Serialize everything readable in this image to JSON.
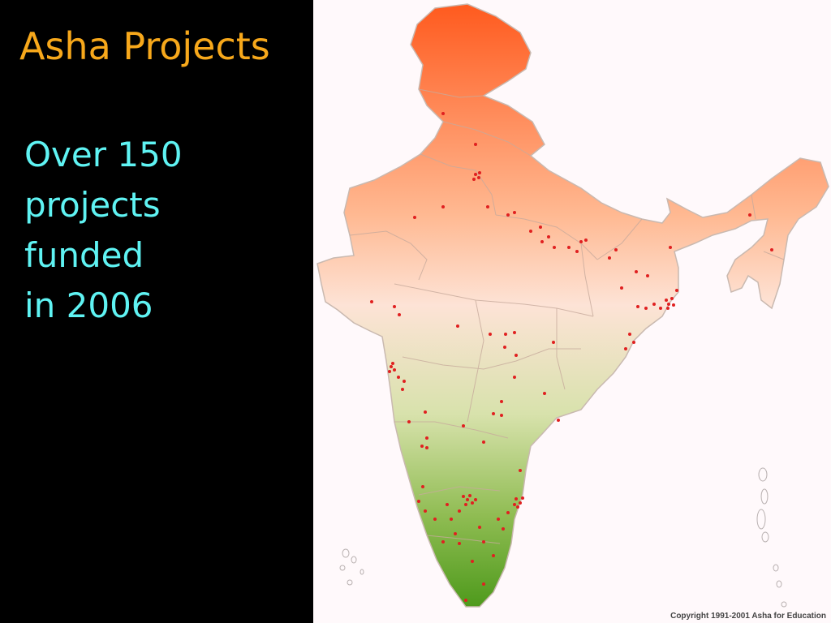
{
  "slide": {
    "title": "Asha Projects",
    "body_lines": [
      "Over 150",
      "projects",
      "funded",
      "in 2006"
    ]
  },
  "map": {
    "subject": "map-of-india",
    "marker_color": "#e02020",
    "gradient": [
      "#ff5a1e",
      "#ffd9c2",
      "#fbe9e2",
      "#c9dca0",
      "#4e9a1c"
    ],
    "copyright": "Copyright 1991-2001 Asha for Education"
  },
  "colors": {
    "title": "#f7a81b",
    "body": "#5ff3f3",
    "background": "#000000"
  }
}
